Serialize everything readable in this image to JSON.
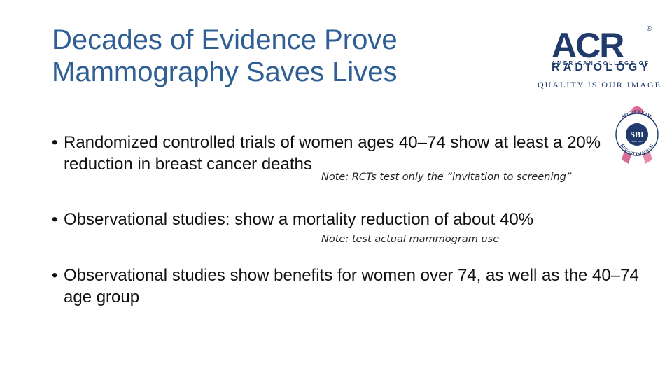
{
  "slide": {
    "title_line1": "Decades of Evidence Prove",
    "title_line2": "Mammography Saves Lives"
  },
  "logos": {
    "acr": {
      "mark": "ACR",
      "registered": "®",
      "line1": "AMERICAN COLLEGE OF",
      "line2": "RADIOLOGY",
      "tagline": "QUALITY IS OUR IMAGE"
    },
    "sbi": {
      "top_text": "SOCIETY OF",
      "bottom_text": "BREAST IMAGING",
      "center": "SBI",
      "since": "Since 1985",
      "ribbon_color": "#E58AAE"
    }
  },
  "bullets": [
    {
      "marker": "•",
      "text": "Randomized controlled trials of women ages 40–74 show at least a 20% reduction in breast cancer deaths"
    },
    {
      "marker": "•",
      "text": "Observational studies: show a mortality reduction of about 40%"
    },
    {
      "marker": "•",
      "text": "Observational studies show benefits for women over 74, as well as the 40–74 age group"
    }
  ],
  "notes": [
    "Note: RCTs test only the “invitation to screening”",
    "Note: test actual mammogram use"
  ],
  "colors": {
    "title": "#2E5E93",
    "acr_blue": "#1F3A6B",
    "text": "#111111"
  }
}
